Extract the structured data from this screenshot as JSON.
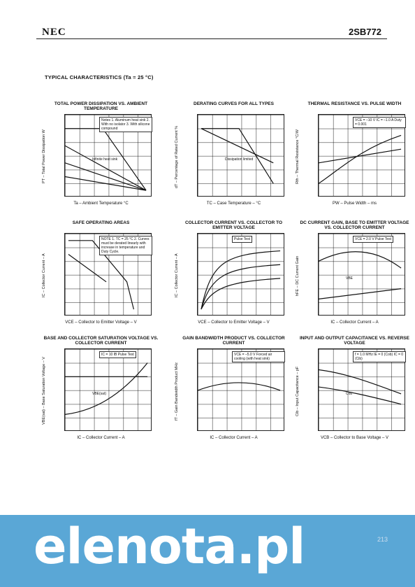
{
  "header": {
    "brand": "NEC",
    "part": "2SB772"
  },
  "section_title": "TYPICAL CHARACTERISTICS (Ta = 25 °C)",
  "panels": [
    {
      "title": "TOTAL POWER DISSIPATION vs. AMBIENT TEMPERATURE",
      "ylabel": "PT – Total Power Dissipation W",
      "xlabel": "Ta – Ambient Temperature °C",
      "note": "Notes 1. Aluminum heat sink 2. With no isolator 3. With silicone compound",
      "curve_label": "Infinite heat sink"
    },
    {
      "title": "DERATING CURVES FOR ALL TYPES",
      "ylabel": "dT – Percentage of Rated Current %",
      "xlabel": "TC – Case Temperature – °C",
      "note": "",
      "curve_label": "Dissipation limited"
    },
    {
      "title": "THERMAL RESISTANCE vs. PULSE WIDTH",
      "ylabel": "Rth – Thermal Resistance °C/W",
      "xlabel": "PW – Pulse Width – ms",
      "note": "VCE = –10 V IC = –1.0 A Duty = 0.001",
      "curve_label": ""
    },
    {
      "title": "SAFE OPERATING AREAS",
      "ylabel": "IC – Collector Current – A",
      "xlabel": "VCE – Collector to Emitter Voltage – V",
      "note": "NOTE 1. TC = 25 °C 2. Curves must be derated linearly with increase in temperature and Duty Cycle.",
      "curve_label": ""
    },
    {
      "title": "COLLECTOR CURRENT vs. COLLECTOR TO EMITTER VOLTAGE",
      "ylabel": "IC – Collector Current – A",
      "xlabel": "VCE – Collector to Emitter Voltage – V",
      "note": "Pulse Test",
      "curve_label": ""
    },
    {
      "title": "DC CURRENT GAIN, BASE TO EMITTER VOLTAGE vs. COLLECTOR CURRENT",
      "ylabel": "hFE – DC Current Gain",
      "xlabel": "IC – Collector Current – A",
      "note": "VCE = 2.0 V Pulse Test",
      "curve_label": "VBE"
    },
    {
      "title": "BASE AND COLLECTOR SATURATION VOLTAGE vs. COLLECTOR CURRENT",
      "ylabel": "VBE(sat) – Base Saturation Voltage – V",
      "xlabel": "IC – Collector Current – A",
      "note": "IC = 10 IB Pulse Test",
      "curve_label": "VBE(sat)"
    },
    {
      "title": "GAIN BANDWIDTH PRODUCT vs. COLLECTOR CURRENT",
      "ylabel": "fT – Gain Bandwidth Product MHz",
      "xlabel": "IC – Collector Current – A",
      "note": "VCE = –5.0 V Forced air cooling (with heat sink)",
      "curve_label": ""
    },
    {
      "title": "INPUT AND OUTPUT CAPACITANCE vs. REVERSE VOLTAGE",
      "ylabel": "Cib – Input Capacitance – pF",
      "xlabel": "VCB – Collector to Base Voltage – V",
      "note": "f = 1.0 MHz IE = 0 (Cob) IC = 0 (Cib)",
      "curve_label": "Cob"
    }
  ],
  "footer": {
    "watermark": "elenota.pl",
    "page": "213"
  }
}
